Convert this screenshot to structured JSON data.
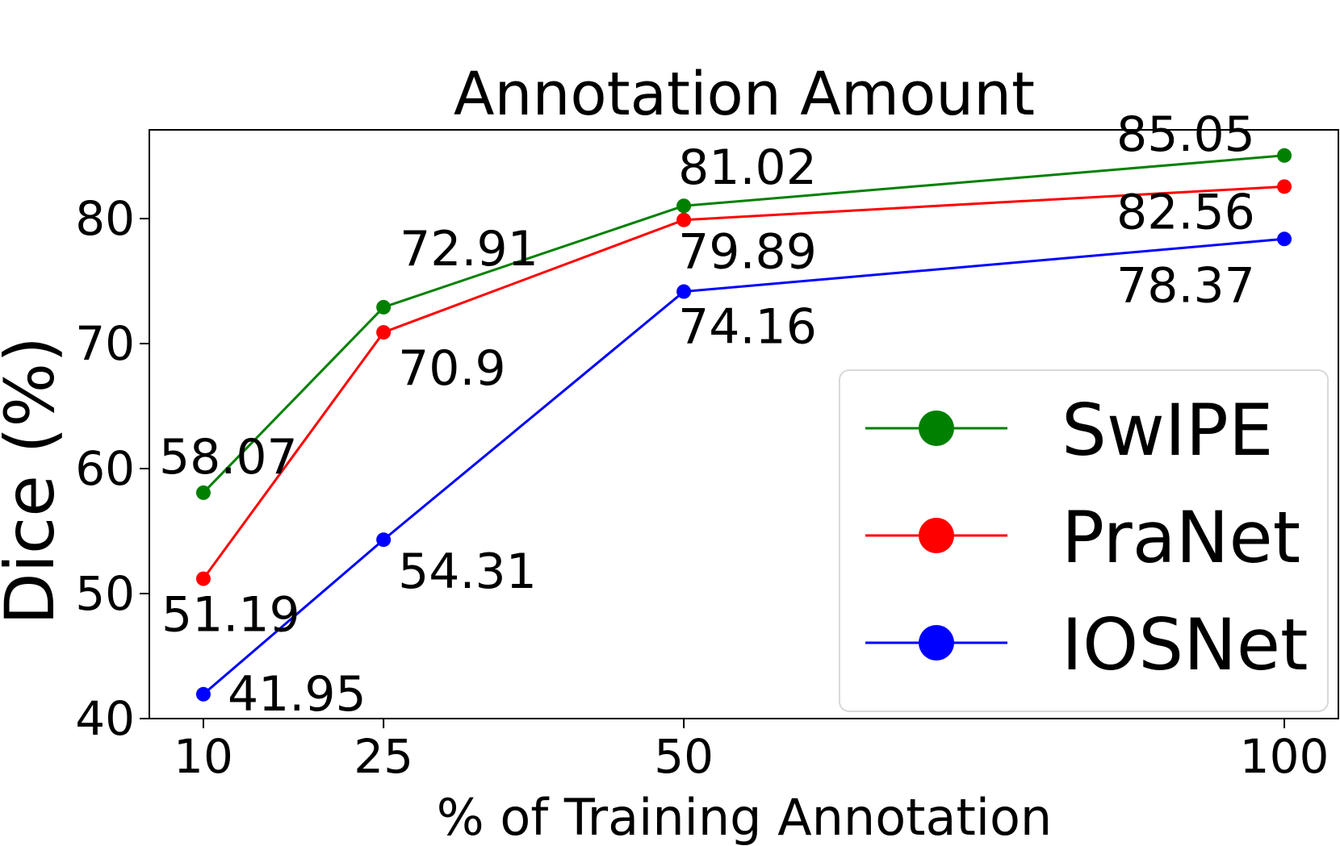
{
  "chart_data": {
    "type": "line",
    "title": "Annotation Amount",
    "xlabel": "% of Training Annotation",
    "ylabel": "Dice (%)",
    "x": [
      10,
      25,
      50,
      100
    ],
    "x_tick_labels": [
      "10",
      "25",
      "50",
      "100"
    ],
    "y_ticks": [
      40,
      50,
      60,
      70,
      80
    ],
    "y_tick_labels": [
      "40",
      "50",
      "60",
      "70",
      "80"
    ],
    "xlim": [
      5.5,
      104.5
    ],
    "ylim": [
      40,
      87.1
    ],
    "grid": false,
    "legend_position": "lower-right",
    "series": [
      {
        "name": "SwIPE",
        "color": "#008000",
        "values": [
          58.07,
          72.91,
          81.02,
          85.05
        ],
        "labels": [
          "58.07",
          "72.91",
          "81.02",
          "85.05"
        ]
      },
      {
        "name": "PraNet",
        "color": "#ff0000",
        "values": [
          51.19,
          70.9,
          79.89,
          82.56
        ],
        "labels": [
          "51.19",
          "70.9",
          "79.89",
          "82.56"
        ]
      },
      {
        "name": "IOSNet",
        "color": "#0000ff",
        "values": [
          41.95,
          54.31,
          74.16,
          78.37
        ],
        "labels": [
          "41.95",
          "54.31",
          "74.16",
          "78.37"
        ]
      }
    ]
  }
}
